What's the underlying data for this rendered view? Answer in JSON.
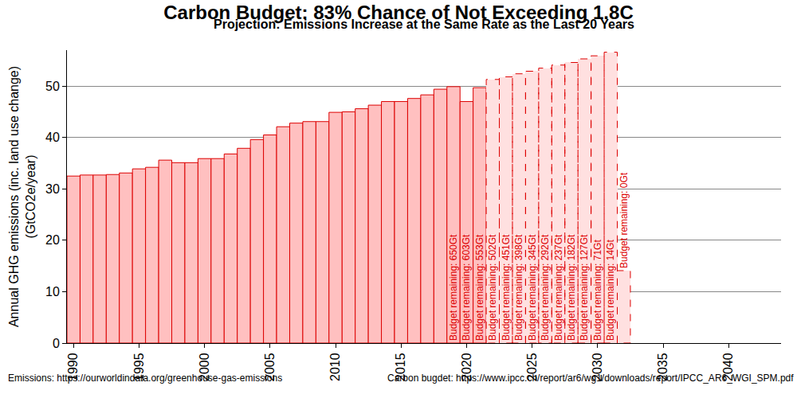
{
  "chart_data": {
    "type": "bar",
    "title": "Carbon Budget: 83% Chance of Not Exceeding 1.8C",
    "subtitle": "Projection: Emissions Increase at the Same Rate as the Last 20 Years",
    "y_label": "Annual GHG emissions (inc. land use change)\n(GtCO2e/year)",
    "x": [
      1990,
      1991,
      1992,
      1993,
      1994,
      1995,
      1996,
      1997,
      1998,
      1999,
      2000,
      2001,
      2002,
      2003,
      2004,
      2005,
      2006,
      2007,
      2008,
      2009,
      2010,
      2011,
      2012,
      2013,
      2014,
      2015,
      2016,
      2017,
      2018,
      2019,
      2020,
      2021,
      2022,
      2023,
      2024,
      2025,
      2026,
      2027,
      2028,
      2029,
      2030,
      2031,
      2032
    ],
    "series": [
      {
        "color": "#ffc0c0",
        "line_style": "solid",
        "values": [
          32.5,
          32.7,
          32.7,
          32.8,
          33.1,
          33.9,
          34.2,
          35.6,
          35.1,
          35.1,
          35.9,
          35.9,
          36.8,
          37.9,
          39.6,
          40.5,
          42.1,
          42.8,
          43.1,
          43.1,
          44.9,
          45.0,
          45.6,
          46.3,
          47.0,
          47.0,
          47.6,
          48.3,
          49.4,
          49.9,
          47.0,
          49.7,
          null,
          null,
          null,
          null,
          null,
          null,
          null,
          null,
          null,
          null,
          null
        ]
      },
      {
        "color": "#ffe0e0",
        "line_style": "dashed",
        "values": [
          null,
          null,
          null,
          null,
          null,
          null,
          null,
          null,
          null,
          null,
          null,
          null,
          null,
          null,
          null,
          null,
          null,
          null,
          null,
          null,
          null,
          null,
          null,
          null,
          null,
          null,
          null,
          null,
          null,
          null,
          null,
          null,
          51.3,
          51.8,
          52.4,
          52.9,
          53.5,
          54.1,
          54.6,
          55.3,
          55.9,
          56.6,
          14.1
        ]
      }
    ],
    "annotations": [
      {
        "x": 2019,
        "text": "Budget remaining: 650Gt"
      },
      {
        "x": 2020,
        "text": "Budget remaining: 603Gt"
      },
      {
        "x": 2021,
        "text": "Budget remaining: 553Gt"
      },
      {
        "x": 2022,
        "text": "Budget remaining: 502Gt"
      },
      {
        "x": 2023,
        "text": "Budget remaining: 451Gt"
      },
      {
        "x": 2024,
        "text": "Budget remaining: 398Gt"
      },
      {
        "x": 2025,
        "text": "Budget remaining: 345Gt"
      },
      {
        "x": 2026,
        "text": "Budget remaining: 292Gt"
      },
      {
        "x": 2027,
        "text": "Budget remaining: 237Gt"
      },
      {
        "x": 2028,
        "text": "Budget remaining: 182Gt"
      },
      {
        "x": 2029,
        "text": "Budget remaining: 127Gt"
      },
      {
        "x": 2030,
        "text": "Budget remaining: 71Gt"
      },
      {
        "x": 2031,
        "text": "Budget remaining: 14Gt"
      },
      {
        "x": 2032,
        "text": "Budget remaining: 0Gt"
      }
    ],
    "footnotes": [
      "Emissions: https://ourworldindata.org/greenhouse-gas-emissions",
      "Carbon bugdet: https://www.ipcc.ch/report/ar6/wg1/downloads/report/IPCC_AR6_WGI_SPM.pdf"
    ],
    "xlim": [
      1989.5,
      2044
    ],
    "xticks": [
      1990,
      1995,
      2000,
      2005,
      2010,
      2015,
      2020,
      2025,
      2030,
      2035,
      2040
    ],
    "ylim": [
      0,
      57
    ],
    "yticks": [
      0,
      10,
      20,
      30,
      40,
      50
    ],
    "grid": true
  }
}
